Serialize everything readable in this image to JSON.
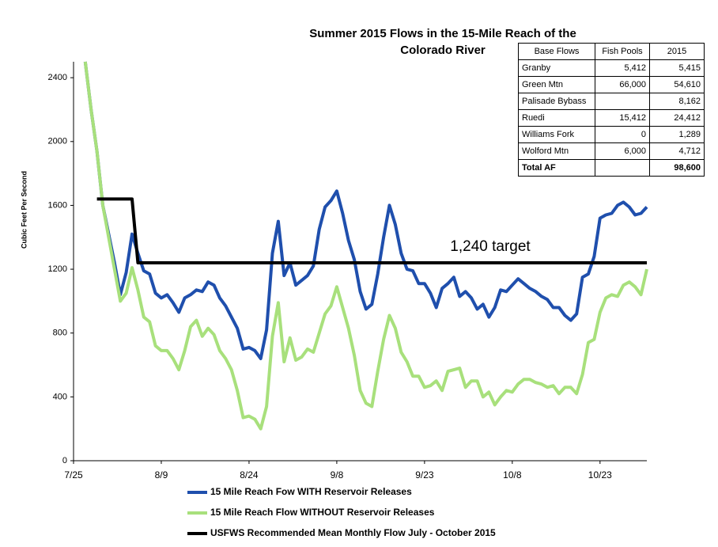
{
  "chart_data": {
    "type": "line",
    "title": [
      "Summer 2015 Flows in the 15-Mile Reach of the",
      "Colorado River"
    ],
    "y_label": "Cubic Feet Per Second",
    "annotation": "1,240 target",
    "xlim": [
      0,
      98
    ],
    "ylim": [
      0,
      2500
    ],
    "xticks": [
      {
        "value": 0,
        "label": "7/25"
      },
      {
        "value": 15,
        "label": "8/9"
      },
      {
        "value": 30,
        "label": "8/24"
      },
      {
        "value": 45,
        "label": "9/8"
      },
      {
        "value": 60,
        "label": "9/23"
      },
      {
        "value": 75,
        "label": "10/8"
      },
      {
        "value": 90,
        "label": "10/23"
      }
    ],
    "yticks": [
      0,
      400,
      800,
      1200,
      1600,
      2000,
      2400
    ],
    "series": [
      {
        "name": "15 Mile Reach Fow WITH Reservoir Releases",
        "color": "#1f4fad",
        "x": [
          2,
          3,
          4,
          5,
          6,
          7,
          8,
          9,
          10,
          11,
          12,
          13,
          14,
          15,
          16,
          17,
          18,
          19,
          20,
          21,
          22,
          23,
          24,
          25,
          26,
          27,
          28,
          29,
          30,
          31,
          32,
          33,
          34,
          35,
          36,
          37,
          38,
          39,
          40,
          41,
          42,
          43,
          44,
          45,
          46,
          47,
          48,
          49,
          50,
          51,
          52,
          53,
          54,
          55,
          56,
          57,
          58,
          59,
          60,
          61,
          62,
          63,
          64,
          65,
          66,
          67,
          68,
          69,
          70,
          71,
          72,
          73,
          74,
          75,
          76,
          77,
          78,
          79,
          80,
          81,
          82,
          83,
          84,
          85,
          86,
          87,
          88,
          89,
          90,
          91,
          92,
          93,
          94,
          95,
          96,
          97,
          98
        ],
        "values": [
          2500,
          2200,
          1940,
          1600,
          1420,
          1240,
          1040,
          1180,
          1420,
          1300,
          1190,
          1170,
          1050,
          1020,
          1040,
          990,
          930,
          1020,
          1040,
          1070,
          1060,
          1120,
          1100,
          1020,
          970,
          900,
          830,
          700,
          710,
          690,
          640,
          820,
          1300,
          1500,
          1160,
          1240,
          1100,
          1130,
          1160,
          1220,
          1450,
          1590,
          1630,
          1690,
          1550,
          1380,
          1260,
          1060,
          950,
          980,
          1170,
          1400,
          1600,
          1480,
          1300,
          1200,
          1190,
          1110,
          1110,
          1050,
          960,
          1080,
          1110,
          1150,
          1030,
          1060,
          1020,
          950,
          980,
          900,
          960,
          1070,
          1060,
          1100,
          1140,
          1110,
          1080,
          1060,
          1030,
          1010,
          960,
          960,
          910,
          880,
          920,
          1150,
          1170,
          1280,
          1520,
          1540,
          1550,
          1600,
          1620,
          1590,
          1540,
          1550,
          1590
        ]
      },
      {
        "name": "15 Mile Reach Flow WITHOUT Reservoir Releases",
        "color": "#a8e07c",
        "x": [
          2,
          3,
          4,
          5,
          6,
          7,
          8,
          9,
          10,
          11,
          12,
          13,
          14,
          15,
          16,
          17,
          18,
          19,
          20,
          21,
          22,
          23,
          24,
          25,
          26,
          27,
          28,
          29,
          30,
          31,
          32,
          33,
          34,
          35,
          36,
          37,
          38,
          39,
          40,
          41,
          42,
          43,
          44,
          45,
          46,
          47,
          48,
          49,
          50,
          51,
          52,
          53,
          54,
          55,
          56,
          57,
          58,
          59,
          60,
          61,
          62,
          63,
          64,
          65,
          66,
          67,
          68,
          69,
          70,
          71,
          72,
          73,
          74,
          75,
          76,
          77,
          78,
          79,
          80,
          81,
          82,
          83,
          84,
          85,
          86,
          87,
          88,
          89,
          90,
          91,
          92,
          93,
          94,
          95,
          96,
          97,
          98
        ],
        "values": [
          2500,
          2200,
          1940,
          1600,
          1400,
          1200,
          1000,
          1050,
          1210,
          1070,
          900,
          870,
          720,
          690,
          690,
          640,
          570,
          690,
          840,
          880,
          780,
          830,
          790,
          690,
          640,
          570,
          440,
          270,
          280,
          260,
          200,
          340,
          780,
          990,
          620,
          770,
          630,
          650,
          700,
          680,
          800,
          920,
          970,
          1090,
          960,
          830,
          660,
          440,
          360,
          340,
          560,
          760,
          910,
          830,
          680,
          620,
          530,
          530,
          460,
          470,
          500,
          440,
          560,
          570,
          580,
          460,
          500,
          500,
          400,
          430,
          350,
          400,
          440,
          430,
          480,
          510,
          510,
          490,
          480,
          460,
          470,
          420,
          460,
          460,
          420,
          540,
          740,
          760,
          930,
          1020,
          1040,
          1030,
          1100,
          1120,
          1090,
          1040,
          1200
        ]
      },
      {
        "name": "USFWS Recommended Mean Monthly Flow July - October 2015",
        "color": "#000000",
        "x": [
          4,
          10,
          11,
          98
        ],
        "values": [
          1640,
          1640,
          1240,
          1240
        ]
      }
    ]
  },
  "table": {
    "header": [
      "Base Flows",
      "Fish Pools",
      "2015"
    ],
    "rows": [
      [
        "Granby",
        "5,412",
        "5,415"
      ],
      [
        "Green Mtn",
        "66,000",
        "54,610"
      ],
      [
        "Palisade Bybass",
        null,
        "8,162"
      ],
      [
        "Ruedi",
        "15,412",
        "24,412"
      ],
      [
        "Williams Fork",
        "0",
        "1,289"
      ],
      [
        "Wolford Mtn",
        "6,000",
        "4,712"
      ],
      [
        "Total AF",
        null,
        "98,600"
      ]
    ]
  }
}
